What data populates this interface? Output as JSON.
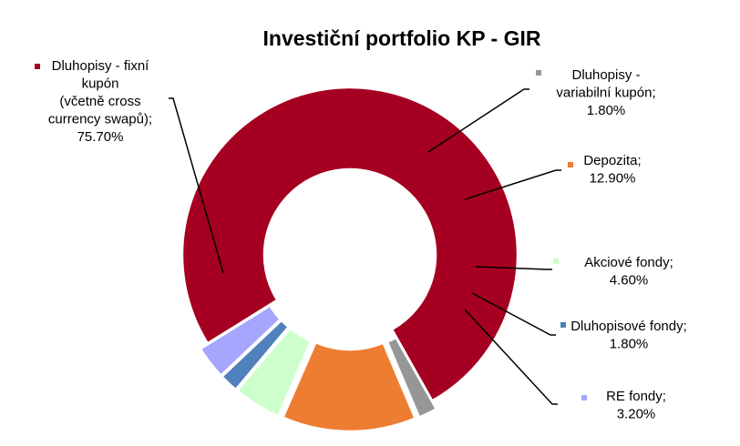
{
  "chart_data": {
    "type": "pie",
    "style": "donut",
    "title": "Investiční portfolio KP - GIR",
    "legend": "none",
    "series": [
      {
        "name": "",
        "values": [
          {
            "label_lines": [
              "Dluhopisy - fixní",
              "kupón",
              "(včetně cross",
              "currency swapů);",
              "75.70%"
            ],
            "value": 75.7,
            "color": "#A50021"
          },
          {
            "label_lines": [
              "Dluhopisy -",
              "variabilní kupón;",
              "1.80%"
            ],
            "value": 1.8,
            "color": "#969696"
          },
          {
            "label_lines": [
              "Depozita;",
              "12.90%"
            ],
            "value": 12.9,
            "color": "#ED7D31"
          },
          {
            "label_lines": [
              "Akciové fondy;",
              "4.60%"
            ],
            "value": 4.6,
            "color": "#CCFFCC"
          },
          {
            "label_lines": [
              "Dluhopisové fondy;",
              "1.80%"
            ],
            "value": 1.8,
            "color": "#4F81BD"
          },
          {
            "label_lines": [
              "RE fondy;",
              "3.20%"
            ],
            "value": 3.2,
            "color": "#A6A6FF"
          }
        ]
      }
    ]
  }
}
